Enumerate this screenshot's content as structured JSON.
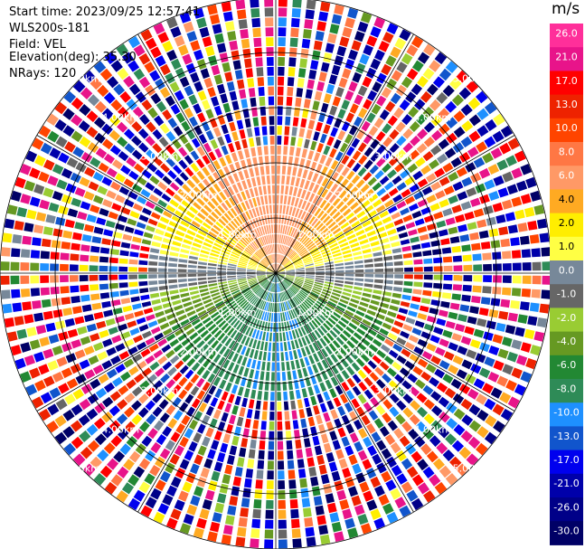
{
  "header": {
    "start_time": "Start time: 2023/09/25 12:57:41",
    "instrument": "WLS200s-181",
    "field": "Field: VEL",
    "elevation": "Elevation(deg): 35.30",
    "nrays": "NRays: 120"
  },
  "colorbar": {
    "unit": "m/s",
    "ticks": [
      "26.0",
      "21.0",
      "17.0",
      "13.0",
      "10.0",
      "8.0",
      "6.0",
      "4.0",
      "2.0",
      "1.0",
      "0.0",
      "-1.0",
      "-2.0",
      "-4.0",
      "-6.0",
      "-8.0",
      "-10.0",
      "-13.0",
      "-17.0",
      "-21.0",
      "-26.0",
      "-30.0"
    ],
    "colors": [
      "#ff2f9a",
      "#e8148a",
      "#ff0000",
      "#ee2200",
      "#ff4400",
      "#ff7744",
      "#ff9966",
      "#ffaa22",
      "#ffee00",
      "#ffff44",
      "#778899",
      "#666666",
      "#99cc33",
      "#669922",
      "#228833",
      "#2e8b57",
      "#1e90ff",
      "#1155cc",
      "#0000ee",
      "#0000aa",
      "#000088",
      "#000066"
    ]
  },
  "chart_data": {
    "type": "heatmap",
    "plot_type": "PPI velocity (polar)",
    "field": "VEL",
    "units": "m/s",
    "n_rays": 120,
    "range_rings_km": [
      1.0,
      2.0,
      3.0,
      4.0,
      5.0
    ],
    "range_labels": [
      "1.00km",
      "2.00km",
      "3.00km",
      "4.00km",
      "5.00km"
    ],
    "clim": [
      -30.0,
      26.0
    ],
    "pattern": {
      "near_field_max_km": 2.3,
      "toward_north_ms": 7.0,
      "toward_south_ms": -8.0,
      "zero_band_orientation": "west-east",
      "far_field": "noise"
    }
  }
}
